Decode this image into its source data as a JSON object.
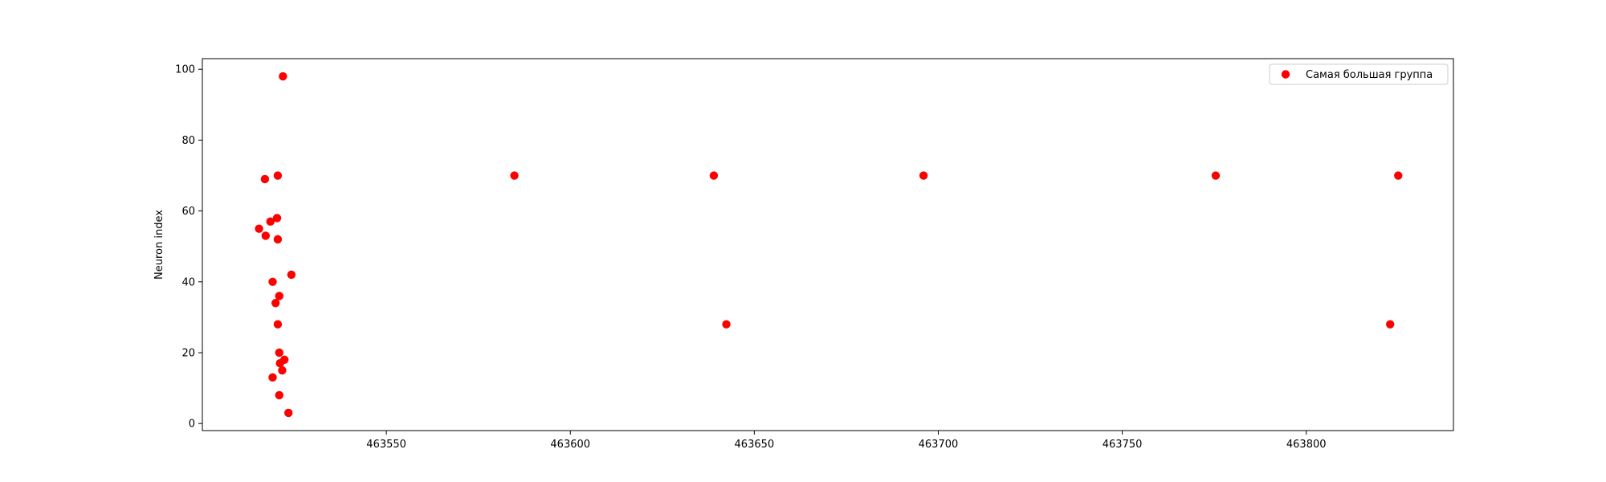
{
  "chart_data": {
    "type": "scatter",
    "title": "",
    "xlabel": "",
    "ylabel": "Neuron index",
    "xlim": [
      463500,
      463840
    ],
    "ylim": [
      -2,
      103
    ],
    "xticks": [
      463550,
      463600,
      463650,
      463700,
      463750,
      463800
    ],
    "yticks": [
      0,
      20,
      40,
      60,
      80,
      100
    ],
    "grid": false,
    "legend_position": "top-right",
    "series": [
      {
        "name": "Самая большая группа",
        "color": "#ff0000",
        "marker": "circle",
        "points": [
          {
            "x": 463515.4,
            "y": 55
          },
          {
            "x": 463517.0,
            "y": 69
          },
          {
            "x": 463517.2,
            "y": 53
          },
          {
            "x": 463518.5,
            "y": 57
          },
          {
            "x": 463519.1,
            "y": 40
          },
          {
            "x": 463519.1,
            "y": 13
          },
          {
            "x": 463519.9,
            "y": 34
          },
          {
            "x": 463520.3,
            "y": 58
          },
          {
            "x": 463520.5,
            "y": 52
          },
          {
            "x": 463520.5,
            "y": 70
          },
          {
            "x": 463520.5,
            "y": 28
          },
          {
            "x": 463520.9,
            "y": 36
          },
          {
            "x": 463520.9,
            "y": 20
          },
          {
            "x": 463520.9,
            "y": 8
          },
          {
            "x": 463521.1,
            "y": 17
          },
          {
            "x": 463521.7,
            "y": 15
          },
          {
            "x": 463521.9,
            "y": 98
          },
          {
            "x": 463522.3,
            "y": 18
          },
          {
            "x": 463523.4,
            "y": 3
          },
          {
            "x": 463524.2,
            "y": 42
          },
          {
            "x": 463584.8,
            "y": 70
          },
          {
            "x": 463639.0,
            "y": 70
          },
          {
            "x": 463642.4,
            "y": 28
          },
          {
            "x": 463696.0,
            "y": 70
          },
          {
            "x": 463775.4,
            "y": 70
          },
          {
            "x": 463822.8,
            "y": 28
          },
          {
            "x": 463825.0,
            "y": 70
          }
        ]
      }
    ]
  }
}
